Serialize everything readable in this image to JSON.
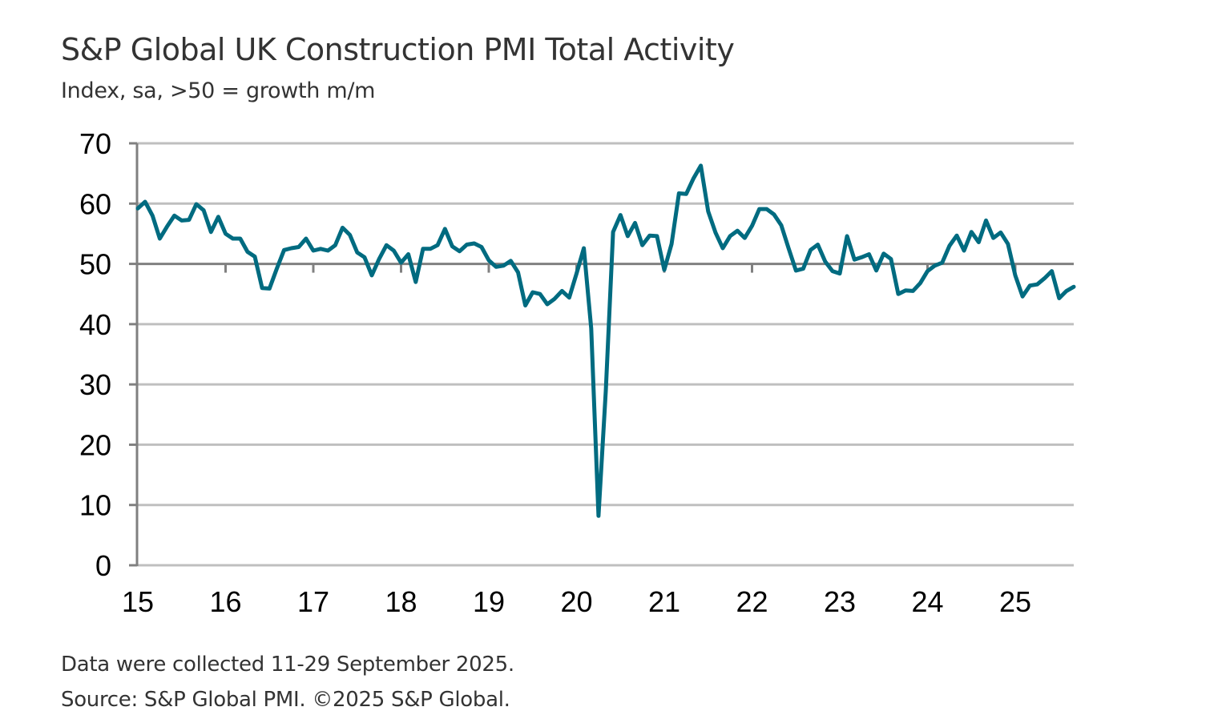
{
  "header": {
    "title": "S&P Global UK Construction PMI Total Activity",
    "subtitle": "Index, sa, >50 = growth m/m"
  },
  "footer": {
    "note": "Data were collected 11-29 September 2025.",
    "source": "Source: S&P Global PMI. ©2025 S&P Global."
  },
  "colors": {
    "series": "#006b80",
    "gridline": "#bfbfbf",
    "axis": "#808080",
    "text": "#333333"
  },
  "chart_data": {
    "type": "line",
    "title": "S&P Global UK Construction PMI Total Activity",
    "subtitle": "Index, sa, >50 = growth m/m",
    "xlabel": "",
    "ylabel": "",
    "ylim": [
      0,
      70
    ],
    "yticks": [
      0,
      10,
      20,
      30,
      40,
      50,
      60,
      70
    ],
    "xticks": [
      "15",
      "16",
      "17",
      "18",
      "19",
      "20",
      "21",
      "22",
      "23",
      "24",
      "25"
    ],
    "x_start": "2015-01",
    "x_frequency": "monthly",
    "grid": true,
    "reference_line": 50,
    "legend": "none",
    "series": [
      {
        "name": "UK Construction PMI Total Activity",
        "values": [
          59.2,
          60.3,
          58.0,
          54.2,
          56.2,
          58.0,
          57.2,
          57.3,
          59.9,
          58.9,
          55.3,
          57.8,
          55.0,
          54.2,
          54.2,
          52.0,
          51.2,
          46.0,
          45.9,
          49.2,
          52.3,
          52.6,
          52.8,
          54.2,
          52.2,
          52.5,
          52.2,
          53.1,
          56.0,
          54.8,
          51.9,
          51.1,
          48.1,
          50.8,
          53.1,
          52.2,
          50.2,
          51.6,
          47.0,
          52.5,
          52.5,
          53.1,
          55.8,
          52.9,
          52.1,
          53.2,
          53.4,
          52.8,
          50.6,
          49.5,
          49.7,
          50.5,
          48.6,
          43.1,
          45.3,
          45.0,
          43.3,
          44.2,
          45.5,
          44.4,
          48.4,
          52.6,
          39.3,
          8.2,
          28.9,
          55.3,
          58.1,
          54.6,
          56.8,
          53.1,
          54.7,
          54.6,
          49.0,
          53.3,
          61.7,
          61.6,
          64.2,
          66.3,
          58.7,
          55.2,
          52.6,
          54.6,
          55.5,
          54.3,
          56.3,
          59.1,
          59.1,
          58.2,
          56.4,
          52.6,
          48.9,
          49.2,
          52.3,
          53.2,
          50.4,
          48.8,
          48.4,
          54.6,
          50.7,
          51.1,
          51.6,
          48.9,
          51.7,
          50.8,
          45.0,
          45.6,
          45.5,
          46.8,
          48.8,
          49.7,
          50.2,
          53.0,
          54.7,
          52.2,
          55.3,
          53.6,
          57.2,
          54.3,
          55.2,
          53.3,
          48.1,
          44.6,
          46.4,
          46.6,
          47.6,
          48.8,
          44.3,
          45.5,
          46.2
        ]
      }
    ]
  }
}
